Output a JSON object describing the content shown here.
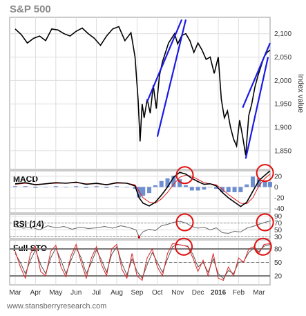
{
  "chart_data": {
    "type": "line",
    "title": "S&P 500",
    "ylabel": "Index value",
    "months": [
      "Mar",
      "Apr",
      "May",
      "Jun",
      "Jul",
      "Aug",
      "Sep",
      "Oct",
      "Nov",
      "Dec",
      "2016",
      "Feb",
      "Mar"
    ],
    "price": {
      "yticks": [
        1850,
        1900,
        1950,
        2000,
        2050,
        2100
      ],
      "ylim": [
        1810,
        2135
      ],
      "x": [
        0,
        0.3,
        0.6,
        0.9,
        1.2,
        1.5,
        1.8,
        2.1,
        2.4,
        2.7,
        3.0,
        3.3,
        3.6,
        3.9,
        4.2,
        4.5,
        4.8,
        5.1,
        5.4,
        5.7,
        5.9,
        6.05,
        6.15,
        6.25,
        6.35,
        6.5,
        6.65,
        6.8,
        6.95,
        7.1,
        7.25,
        7.4,
        7.55,
        7.7,
        7.85,
        8.0,
        8.2,
        8.4,
        8.6,
        8.8,
        9.0,
        9.2,
        9.4,
        9.6,
        9.8,
        10.0,
        10.15,
        10.3,
        10.45,
        10.6,
        10.75,
        10.9,
        11.05,
        11.2,
        11.35,
        11.5,
        11.65,
        11.8,
        11.95,
        12.1,
        12.25,
        12.4,
        12.55
      ],
      "values": [
        2110,
        2098,
        2080,
        2090,
        2095,
        2085,
        2110,
        2108,
        2100,
        2095,
        2105,
        2112,
        2100,
        2090,
        2075,
        2095,
        2110,
        2115,
        2085,
        2102,
        2050,
        1960,
        1870,
        1950,
        1920,
        1960,
        1930,
        1990,
        1940,
        2010,
        2040,
        2060,
        2080,
        2090,
        2100,
        2078,
        2096,
        2100,
        2085,
        2060,
        2080,
        2065,
        2045,
        2050,
        2015,
        2050,
        1960,
        1920,
        1935,
        1900,
        1875,
        1860,
        1915,
        1880,
        1840,
        1925,
        1950,
        1985,
        2010,
        2030,
        2050,
        2060,
        2065
      ],
      "trendlines": [
        {
          "from": [
            6.5,
            1955
          ],
          "to": [
            8.2,
            2130
          ]
        },
        {
          "from": [
            7.0,
            1880
          ],
          "to": [
            8.4,
            2130
          ]
        },
        {
          "from": [
            11.2,
            1942
          ],
          "to": [
            12.55,
            2080
          ]
        },
        {
          "from": [
            11.35,
            1833
          ],
          "to": [
            12.45,
            2050
          ]
        }
      ],
      "trendline_color": "#1a1ae6"
    },
    "macd": {
      "label": "MACD",
      "yticks": [
        20,
        0,
        -20,
        -40
      ],
      "ylim": [
        -48,
        30
      ],
      "x": [
        0,
        0.5,
        1,
        1.5,
        2,
        2.5,
        3,
        3.5,
        4,
        4.5,
        5,
        5.5,
        5.9,
        6.1,
        6.3,
        6.6,
        6.9,
        7.2,
        7.5,
        7.8,
        8.1,
        8.4,
        8.7,
        9.0,
        9.3,
        9.6,
        9.9,
        10.2,
        10.5,
        10.8,
        11.1,
        11.4,
        11.7,
        12.0,
        12.3,
        12.55
      ],
      "macd": [
        6,
        8,
        4,
        6,
        8,
        7,
        9,
        5,
        7,
        4,
        8,
        7,
        2,
        -20,
        -30,
        -35,
        -28,
        -15,
        0,
        18,
        27,
        24,
        16,
        10,
        5,
        6,
        2,
        -10,
        -20,
        -28,
        -36,
        -28,
        -8,
        12,
        22,
        30
      ],
      "signal": [
        5,
        7,
        5,
        6,
        7,
        7,
        8,
        6,
        6,
        5,
        7,
        7,
        4,
        -8,
        -20,
        -28,
        -30,
        -22,
        -10,
        5,
        18,
        22,
        20,
        14,
        8,
        6,
        4,
        -4,
        -14,
        -22,
        -30,
        -31,
        -20,
        2,
        16,
        24
      ],
      "histogram_color": "#4a72c4",
      "signal_color": "#e02020"
    },
    "rsi": {
      "label": "RSI (14)",
      "yticks": [
        90,
        70,
        50,
        30
      ],
      "ylim": [
        25,
        95
      ],
      "x": [
        0,
        0.4,
        0.8,
        1.2,
        1.6,
        2.0,
        2.4,
        2.8,
        3.2,
        3.6,
        4.0,
        4.4,
        4.8,
        5.2,
        5.6,
        5.95,
        6.1,
        6.3,
        6.6,
        6.9,
        7.2,
        7.5,
        7.8,
        8.1,
        8.4,
        8.7,
        9.0,
        9.3,
        9.6,
        9.9,
        10.2,
        10.5,
        10.8,
        11.1,
        11.4,
        11.7,
        12.0,
        12.3,
        12.55
      ],
      "values": [
        60,
        55,
        58,
        50,
        62,
        56,
        60,
        52,
        58,
        54,
        56,
        60,
        55,
        62,
        57,
        50,
        30,
        45,
        52,
        48,
        62,
        66,
        72,
        75,
        70,
        60,
        55,
        58,
        50,
        56,
        42,
        40,
        46,
        44,
        55,
        60,
        66,
        72,
        76
      ],
      "line_color": "#666666",
      "oversold_color": "#cc0000"
    },
    "sto": {
      "label": "Full STO",
      "yticks": [
        80,
        50,
        20
      ],
      "ylim": [
        0,
        100
      ],
      "x": [
        0,
        0.25,
        0.5,
        0.75,
        1.0,
        1.25,
        1.5,
        1.75,
        2.0,
        2.25,
        2.5,
        2.75,
        3.0,
        3.25,
        3.5,
        3.75,
        4.0,
        4.25,
        4.5,
        4.75,
        5.0,
        5.25,
        5.5,
        5.75,
        6.0,
        6.25,
        6.5,
        6.75,
        7.0,
        7.25,
        7.5,
        7.75,
        8.0,
        8.25,
        8.5,
        8.75,
        9.0,
        9.25,
        9.5,
        9.75,
        10.0,
        10.25,
        10.5,
        10.75,
        11.0,
        11.25,
        11.5,
        11.75,
        12.0,
        12.25,
        12.55
      ],
      "k": [
        75,
        40,
        15,
        70,
        85,
        30,
        20,
        75,
        88,
        40,
        18,
        65,
        90,
        50,
        15,
        60,
        85,
        45,
        20,
        80,
        90,
        35,
        15,
        70,
        20,
        10,
        60,
        80,
        40,
        20,
        70,
        92,
        90,
        88,
        85,
        60,
        30,
        55,
        20,
        70,
        15,
        10,
        40,
        20,
        60,
        50,
        80,
        85,
        70,
        90,
        92
      ],
      "d": [
        70,
        50,
        25,
        55,
        78,
        45,
        25,
        60,
        82,
        55,
        25,
        55,
        82,
        60,
        25,
        50,
        78,
        55,
        28,
        68,
        85,
        48,
        22,
        58,
        30,
        15,
        45,
        72,
        50,
        28,
        58,
        85,
        90,
        88,
        86,
        68,
        40,
        50,
        28,
        58,
        25,
        14,
        32,
        25,
        50,
        52,
        72,
        82,
        74,
        86,
        90
      ],
      "k_color": "#dd2222",
      "d_color": "#555555"
    },
    "highlight_circles": [
      {
        "panel": "macd",
        "x": 8.35,
        "y": 22
      },
      {
        "panel": "macd",
        "x": 12.3,
        "y": 26
      },
      {
        "panel": "rsi",
        "x": 8.35,
        "y": 72
      },
      {
        "panel": "rsi",
        "x": 12.3,
        "y": 72
      },
      {
        "panel": "sto",
        "x": 8.3,
        "y": 85
      },
      {
        "panel": "sto",
        "x": 12.2,
        "y": 85
      }
    ],
    "circle_color": "#e01010",
    "watermark": "www.stansberryresearch.com"
  }
}
